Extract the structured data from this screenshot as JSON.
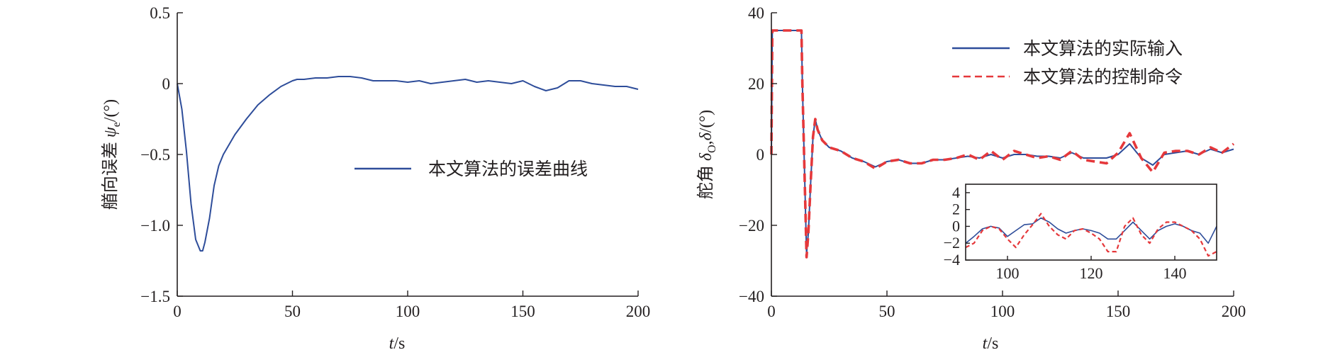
{
  "colors": {
    "actual": "#2e4d9a",
    "command": "#e5383b",
    "axis": "#231f20"
  },
  "chart_data": [
    {
      "type": "line",
      "xlabel": "t/s",
      "ylabel": "艏向误差 ψe/(°)",
      "xlim": [
        0,
        200
      ],
      "ylim": [
        -1.5,
        0.5
      ],
      "xticks": [
        0,
        50,
        100,
        150,
        200
      ],
      "yticks": [
        -1.5,
        -1.0,
        -0.5,
        0,
        0.5
      ],
      "xtick_labels": [
        "0",
        "50",
        "100",
        "150",
        "200"
      ],
      "ytick_labels": [
        "−1.5",
        "−1.0",
        "−0.5",
        "0",
        "0.5"
      ],
      "legend_position": "center-right",
      "series": [
        {
          "name": "本文算法的误差曲线",
          "color": "#2e4d9a",
          "dash": false,
          "x": [
            0,
            2,
            4,
            6,
            8,
            10,
            11,
            12,
            14,
            16,
            18,
            20,
            25,
            30,
            35,
            40,
            45,
            50,
            52,
            55,
            60,
            65,
            70,
            75,
            80,
            85,
            90,
            95,
            100,
            105,
            110,
            115,
            120,
            125,
            130,
            135,
            140,
            145,
            150,
            155,
            160,
            165,
            170,
            175,
            180,
            185,
            190,
            195,
            200
          ],
          "y": [
            0,
            -0.18,
            -0.48,
            -0.85,
            -1.1,
            -1.18,
            -1.18,
            -1.12,
            -0.95,
            -0.72,
            -0.58,
            -0.5,
            -0.36,
            -0.25,
            -0.15,
            -0.08,
            -0.02,
            0.02,
            0.03,
            0.03,
            0.04,
            0.04,
            0.05,
            0.05,
            0.04,
            0.02,
            0.02,
            0.02,
            0.01,
            0.02,
            0.0,
            0.01,
            0.02,
            0.03,
            0.01,
            0.02,
            0.01,
            0.0,
            0.02,
            -0.02,
            -0.05,
            -0.03,
            0.02,
            0.02,
            0.0,
            -0.01,
            -0.02,
            -0.02,
            -0.04
          ]
        }
      ]
    },
    {
      "type": "line",
      "xlabel": "t/s",
      "ylabel": "舵角 δO,δ/(°)",
      "xlim": [
        0,
        200
      ],
      "ylim": [
        -40,
        40
      ],
      "xticks": [
        0,
        50,
        100,
        150,
        200
      ],
      "yticks": [
        -40,
        -20,
        0,
        20,
        40
      ],
      "xtick_labels": [
        "0",
        "50",
        "100",
        "150",
        "200"
      ],
      "ytick_labels": [
        "−40",
        "−20",
        "0",
        "20",
        "40"
      ],
      "legend_position": "top-right",
      "series": [
        {
          "name": "本文算法的实际输入",
          "color": "#2e4d9a",
          "dash": false,
          "x": [
            0,
            0.4,
            13,
            13.4,
            15.2,
            16,
            17,
            18,
            19,
            20,
            22,
            25,
            30,
            35,
            40,
            45,
            50,
            55,
            60,
            65,
            70,
            75,
            80,
            85,
            90,
            95,
            100,
            105,
            110,
            115,
            120,
            125,
            130,
            135,
            140,
            145,
            150,
            155,
            160,
            165,
            170,
            175,
            180,
            185,
            190,
            195,
            200
          ],
          "y": [
            0,
            35,
            35,
            20,
            -28,
            -22,
            -8,
            5,
            10,
            7,
            4,
            2,
            1,
            -1,
            -2,
            -3.5,
            -2,
            -1.5,
            -2.5,
            -2.5,
            -1.5,
            -1.5,
            -1,
            -0.5,
            -1,
            0,
            -1,
            0,
            0,
            -0.5,
            -0.5,
            -1,
            0.5,
            -1,
            -1,
            -1,
            0,
            3,
            -1,
            -3,
            0,
            0.5,
            1,
            0,
            1.5,
            0.5,
            1.5
          ]
        },
        {
          "name": "本文算法的控制命令",
          "color": "#e5383b",
          "dash": true,
          "x": [
            0,
            0.4,
            13,
            13.4,
            15.2,
            16,
            17,
            18,
            19,
            20,
            22,
            25,
            30,
            35,
            40,
            45,
            50,
            55,
            60,
            65,
            70,
            75,
            80,
            85,
            90,
            95,
            100,
            105,
            110,
            115,
            120,
            125,
            130,
            135,
            140,
            145,
            150,
            155,
            160,
            165,
            170,
            175,
            180,
            185,
            190,
            195,
            200
          ],
          "y": [
            0,
            35,
            35,
            20,
            -29,
            -22,
            -8,
            5,
            10,
            7,
            4,
            2,
            1,
            -1,
            -2,
            -4,
            -2,
            -1.5,
            -2.5,
            -2.5,
            -1.5,
            -1.5,
            -1,
            0,
            -1.5,
            1,
            -1.5,
            1,
            0,
            -1,
            -0.5,
            -1.5,
            1,
            -1.5,
            -2,
            -2.5,
            0.5,
            6,
            -1,
            -5,
            0.5,
            1,
            1,
            0,
            2,
            0.5,
            3
          ]
        }
      ],
      "inset": {
        "xlim": [
          90,
          150
        ],
        "ylim": [
          -4,
          5
        ],
        "xticks": [
          100,
          120,
          140
        ],
        "yticks": [
          -4,
          -2,
          0,
          2,
          4
        ],
        "xtick_labels": [
          "100",
          "120",
          "140"
        ],
        "ytick_labels": [
          "−4",
          "−2",
          "0",
          "2",
          "4"
        ],
        "series": [
          {
            "name": "本文算法的实际输入",
            "color": "#2e4d9a",
            "dash": false,
            "x": [
              90,
              92,
              94,
              96,
              98,
              100,
              102,
              104,
              106,
              108,
              110,
              112,
              114,
              116,
              118,
              120,
              122,
              124,
              126,
              128,
              130,
              132,
              134,
              136,
              138,
              140,
              142,
              144,
              146,
              148,
              150
            ],
            "y": [
              -2,
              -1.2,
              -0.3,
              0,
              -0.2,
              -1.2,
              -0.5,
              0.2,
              0.3,
              1,
              0.5,
              -0.3,
              -0.8,
              -0.5,
              -0.3,
              -0.5,
              -0.8,
              -1.5,
              -1.5,
              -0.5,
              0.5,
              -0.5,
              -1.5,
              -0.5,
              0,
              0.3,
              0,
              -0.5,
              -0.8,
              -2,
              0
            ]
          },
          {
            "name": "本文算法的控制命令",
            "color": "#e5383b",
            "dash": true,
            "x": [
              90,
              92,
              94,
              96,
              98,
              100,
              102,
              104,
              106,
              108,
              110,
              112,
              114,
              116,
              118,
              120,
              122,
              124,
              126,
              128,
              130,
              132,
              134,
              136,
              138,
              140,
              142,
              144,
              146,
              148,
              150
            ],
            "y": [
              -2.5,
              -2,
              -0.5,
              0,
              -0.3,
              -1.5,
              -2.5,
              -1,
              0.2,
              1.5,
              0,
              -1,
              -1.5,
              -0.5,
              -0.3,
              -0.8,
              -1.5,
              -3,
              -3,
              0,
              1,
              -1,
              -2,
              -0.3,
              0.5,
              0.5,
              0,
              -0.5,
              -1.5,
              -3.5,
              -3
            ]
          }
        ]
      }
    }
  ]
}
